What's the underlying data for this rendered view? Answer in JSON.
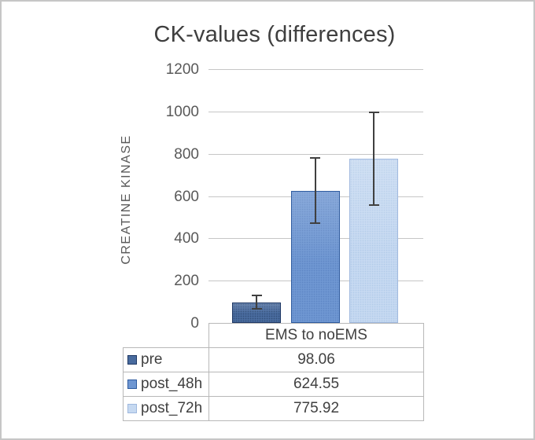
{
  "window": {
    "background": "#ffffff",
    "frame_border_color": "#c6c6c6"
  },
  "chart_data": {
    "type": "bar",
    "title": "CK-values (differences)",
    "ylabel": "CREATINE KINASE",
    "xlabel": "",
    "categories": [
      "EMS to noEMS"
    ],
    "series": [
      {
        "name": "pre",
        "values": [
          98.06
        ],
        "error": [
          35
        ],
        "fill": "#496b9e",
        "border": "#1f3864",
        "pattern_dot": "#33507c"
      },
      {
        "name": "post_48h",
        "values": [
          624.55
        ],
        "error": [
          158
        ],
        "fill": "#6f97d2",
        "border": "#2e5b9f",
        "pattern_dot": "#5e86c4"
      },
      {
        "name": "post_72h",
        "values": [
          775.92
        ],
        "error": [
          224
        ],
        "fill": "#c6d9f1",
        "border": "#9fb8de",
        "pattern_dot": "#b3cbe9"
      }
    ],
    "ylim": [
      0,
      1200
    ],
    "yticks": [
      0,
      200,
      400,
      600,
      800,
      1000,
      1200
    ],
    "grid": true,
    "gridline_color": "#c6c6c6",
    "error_bar_color": "#404040",
    "tick_label_color": "#595959",
    "text_color": "#404040",
    "legend_position": "data-table-left",
    "data_table": {
      "header": "EMS to noEMS",
      "rows": [
        {
          "label": "pre",
          "value": "98.06"
        },
        {
          "label": "post_48h",
          "value": "624.55"
        },
        {
          "label": "post_72h",
          "value": "775.92"
        }
      ]
    }
  }
}
